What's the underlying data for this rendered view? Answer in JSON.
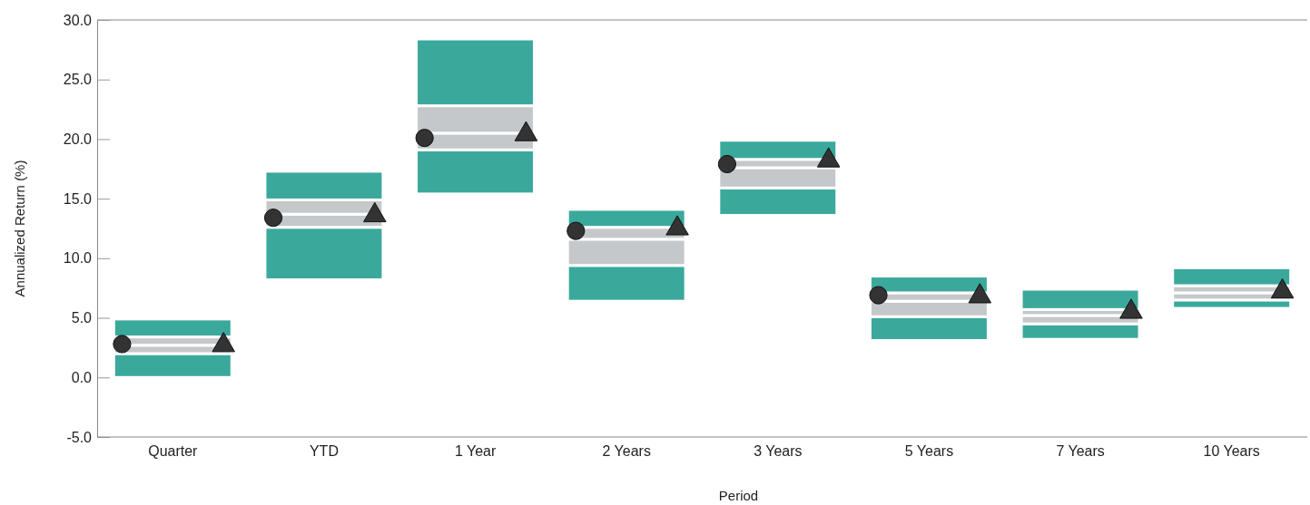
{
  "chart_data": {
    "type": "bar",
    "ylabel": "Annualized Return (%)",
    "xlabel": "Period",
    "categories": [
      "Quarter",
      "YTD",
      "1 Year",
      "2 Years",
      "3 Years",
      "5 Years",
      "7 Years",
      "10 Years"
    ],
    "series": [
      {
        "color": "#3aa99c",
        "base": [
          0.0,
          8.2,
          15.4,
          6.4,
          13.6,
          3.1,
          3.2,
          5.8
        ],
        "values": [
          2.0,
          4.4,
          3.7,
          3.0,
          2.3,
          2.0,
          1.3,
          0.7
        ]
      },
      {
        "color": "#c5c8ca",
        "base": [
          2.0,
          12.6,
          19.1,
          9.4,
          15.9,
          5.1,
          4.5,
          6.5
        ],
        "values": [
          0.7,
          1.1,
          1.4,
          2.2,
          1.7,
          1.3,
          0.7,
          0.6
        ]
      },
      {
        "color": "#c5c8ca",
        "base": [
          2.7,
          13.7,
          20.5,
          11.6,
          17.6,
          6.4,
          5.2,
          7.1
        ],
        "values": [
          0.7,
          1.2,
          2.3,
          1.0,
          0.7,
          0.7,
          0.5,
          0.6
        ]
      },
      {
        "color": "#3aa99c",
        "base": [
          3.4,
          14.9,
          22.8,
          12.6,
          18.3,
          7.1,
          5.7,
          7.7
        ],
        "values": [
          1.5,
          2.4,
          5.6,
          1.5,
          1.6,
          1.4,
          1.7,
          1.5
        ]
      },
      {
        "type": "scatter",
        "marker": "circle",
        "color": "#333333",
        "x": [
          "Quarter",
          "YTD",
          "1 Year",
          "2 Years",
          "3 Years",
          "5 Years"
        ],
        "values": [
          2.8,
          13.4,
          20.1,
          12.3,
          17.9,
          6.9
        ]
      },
      {
        "type": "scatter",
        "marker": "triangle",
        "color": "#333333",
        "x": [
          "Quarter",
          "YTD",
          "1 Year",
          "2 Years",
          "3 Years",
          "5 Years",
          "7 Years",
          "10 Years"
        ],
        "values": [
          2.7,
          13.6,
          20.4,
          12.5,
          18.2,
          6.8,
          5.5,
          7.2
        ]
      }
    ],
    "ylim": [
      -5,
      30
    ],
    "yticks": [
      {
        "value": -5,
        "label": "-5.0"
      },
      {
        "value": 0,
        "label": "0.0"
      },
      {
        "value": 5,
        "label": "5.0"
      },
      {
        "value": 10,
        "label": "10.0"
      },
      {
        "value": 15,
        "label": "15.0"
      },
      {
        "value": 20,
        "label": "20.0"
      },
      {
        "value": 25,
        "label": "25.0"
      },
      {
        "value": 30,
        "label": "30.0"
      }
    ]
  }
}
